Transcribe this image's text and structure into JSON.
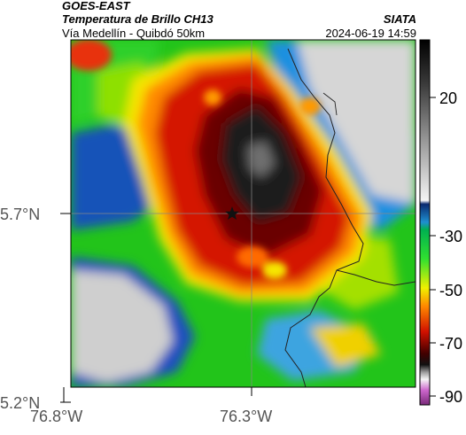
{
  "header": {
    "satellite": "GOES-EAST",
    "product": "Temperatura de Brillo CH13",
    "route": "Vía Medellín - Quibdó 50km",
    "organization": "SIATA",
    "timestamp": "2024-06-19 14:59"
  },
  "axes": {
    "lat_ticks": [
      "5.7°N",
      "5.2°N"
    ],
    "lon_ticks": [
      "76.8°W",
      "76.3°W"
    ]
  },
  "colorbar": {
    "ticks": [
      "20",
      "-30",
      "-50",
      "-70",
      "-90"
    ]
  },
  "colors": {
    "very_cold": "#1a1a1a",
    "cold_red": "#c41000",
    "mid_orange": "#ff7a00",
    "yellow": "#f4f000",
    "green": "#19c400",
    "blue": "#1448c0",
    "warm_gray": "#cccccc"
  },
  "marker": "star-icon"
}
